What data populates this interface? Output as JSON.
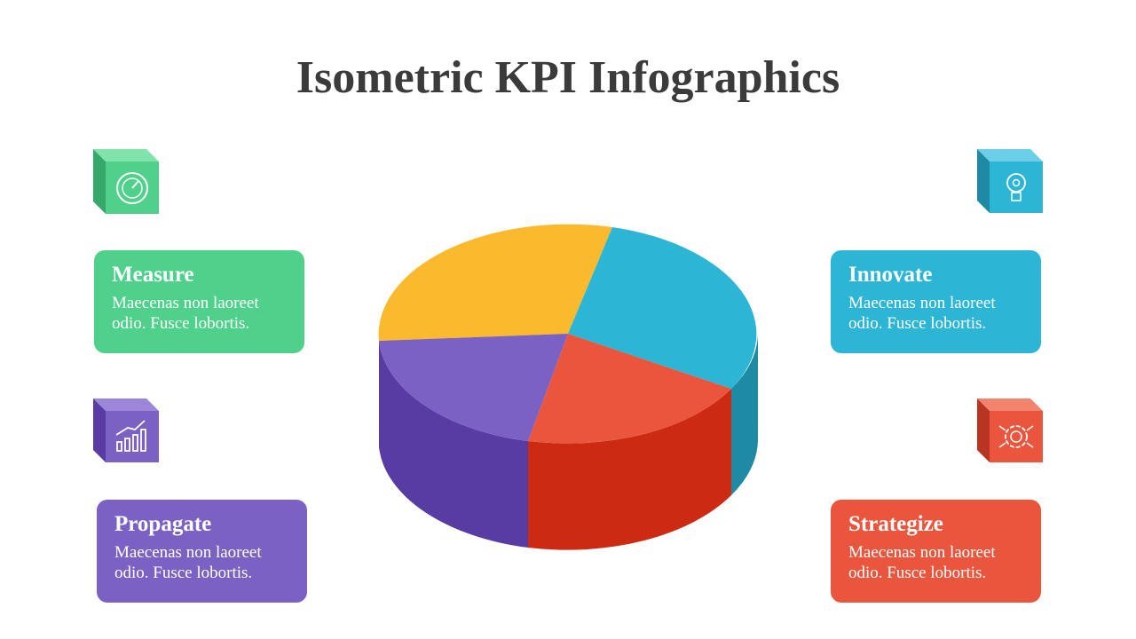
{
  "header": {
    "title": "Isometric KPI Infographics"
  },
  "cards": [
    {
      "title": "Measure",
      "text": "Maecenas non laoreet odio. Fusce lobortis."
    },
    {
      "title": "Innovate",
      "text": "Maecenas non laoreet odio. Fusce lobortis."
    },
    {
      "title": "Propagate",
      "text": "Maecenas non laoreet odio. Fusce lobortis."
    },
    {
      "title": "Strategize",
      "text": "Maecenas non laoreet odio. Fusce lobortis."
    }
  ]
}
